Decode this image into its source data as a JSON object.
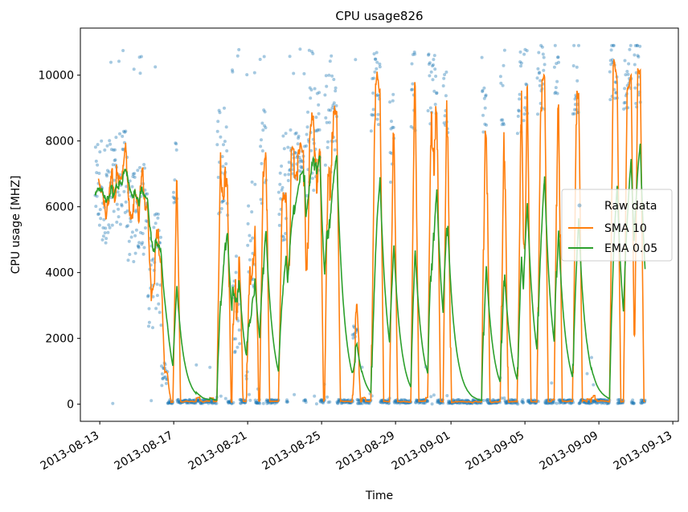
{
  "chart_data": {
    "type": "line",
    "title": "CPU usage826",
    "xlabel": "Time",
    "ylabel": "CPU usage [MHZ]",
    "x_ticks": [
      "2013-08-13",
      "2013-08-17",
      "2013-08-21",
      "2013-08-25",
      "2013-08-29",
      "2013-09-01",
      "2013-09-05",
      "2013-09-09",
      "2013-09-13"
    ],
    "y_ticks": [
      0,
      2000,
      4000,
      6000,
      8000,
      10000
    ],
    "xlim": [
      "2013-08-11T22:48",
      "2013-09-13T07:12"
    ],
    "ylim": [
      -520,
      11430
    ],
    "data_range": [
      "2013-08-12T18:00",
      "2013-09-11T12:00"
    ],
    "segments": [
      {
        "start": "2013-08-12T18:00",
        "end": "2013-08-13T12:00",
        "level": 6500,
        "noise": 1600
      },
      {
        "start": "2013-08-13T12:00",
        "end": "2013-08-14T12:00",
        "level": 6800,
        "noise": 1500
      },
      {
        "start": "2013-08-14T12:00",
        "end": "2013-08-15T14:00",
        "level": 5800,
        "noise": 1500
      },
      {
        "start": "2013-08-15T14:00",
        "end": "2013-08-16T08:00",
        "level": 4000,
        "noise": 1800
      },
      {
        "start": "2013-08-16T08:00",
        "end": "2013-08-16T16:00",
        "level": 900,
        "noise": 400
      },
      {
        "start": "2013-08-16T23:00",
        "end": "2013-08-17T05:00",
        "level": 7000,
        "noise": 1000
      },
      {
        "start": "2013-08-19T08:00",
        "end": "2013-08-19T22:00",
        "level": 7200,
        "noise": 1800
      },
      {
        "start": "2013-08-20T04:00",
        "end": "2013-08-20T14:00",
        "level": 3000,
        "noise": 1500
      },
      {
        "start": "2013-08-20T22:00",
        "end": "2013-08-21T00:00",
        "level": 900,
        "noise": 300
      },
      {
        "start": "2013-08-21T00:00",
        "end": "2013-08-21T10:00",
        "level": 5000,
        "noise": 1800
      },
      {
        "start": "2013-08-21T16:00",
        "end": "2013-08-22T00:00",
        "level": 7500,
        "noise": 1500
      },
      {
        "start": "2013-08-22T16:00",
        "end": "2013-08-23T02:00",
        "level": 6500,
        "noise": 1800
      },
      {
        "start": "2013-08-23T04:00",
        "end": "2013-08-24T02:00",
        "level": 7600,
        "noise": 900
      },
      {
        "start": "2013-08-24T04:00",
        "end": "2013-08-24T22:00",
        "level": 8000,
        "noise": 1800
      },
      {
        "start": "2013-08-25T04:00",
        "end": "2013-08-25T20:00",
        "level": 8500,
        "noise": 1500
      },
      {
        "start": "2013-08-26T16:00",
        "end": "2013-08-26T22:00",
        "level": 2200,
        "noise": 300
      },
      {
        "start": "2013-08-27T16:00",
        "end": "2013-08-28T04:00",
        "level": 9500,
        "noise": 1200
      },
      {
        "start": "2013-08-28T16:00",
        "end": "2013-08-28T22:00",
        "level": 8000,
        "noise": 1500
      },
      {
        "start": "2013-08-29T20:00",
        "end": "2013-08-30T02:00",
        "level": 9500,
        "noise": 1200
      },
      {
        "start": "2013-08-30T18:00",
        "end": "2013-08-31T06:00",
        "level": 9800,
        "noise": 1300
      },
      {
        "start": "2013-08-31T14:00",
        "end": "2013-08-31T20:00",
        "level": 9000,
        "noise": 1300
      },
      {
        "start": "2013-09-02T16:00",
        "end": "2013-09-02T22:00",
        "level": 9200,
        "noise": 1300
      },
      {
        "start": "2013-09-03T16:00",
        "end": "2013-09-03T22:00",
        "level": 9600,
        "noise": 1200
      },
      {
        "start": "2013-09-04T14:00",
        "end": "2013-09-04T20:00",
        "level": 9500,
        "noise": 1300
      },
      {
        "start": "2013-09-04T22:00",
        "end": "2013-09-05T04:00",
        "level": 9600,
        "noise": 1200
      },
      {
        "start": "2013-09-05T16:00",
        "end": "2013-09-06T02:00",
        "level": 9800,
        "noise": 1300
      },
      {
        "start": "2013-09-06T14:00",
        "end": "2013-09-06T20:00",
        "level": 10200,
        "noise": 1000
      },
      {
        "start": "2013-09-07T14:00",
        "end": "2013-09-07T22:00",
        "level": 10000,
        "noise": 1200
      },
      {
        "start": "2013-09-09T14:00",
        "end": "2013-09-10T00:00",
        "level": 10200,
        "noise": 1000
      },
      {
        "start": "2013-09-10T08:00",
        "end": "2013-09-10T18:00",
        "level": 10000,
        "noise": 1200
      },
      {
        "start": "2013-09-10T22:00",
        "end": "2013-09-11T06:00",
        "level": 10000,
        "noise": 1200
      }
    ],
    "baseline": 80,
    "series": [
      {
        "name": "Raw data",
        "style": "points",
        "color": "#1f77b4",
        "opacity": 0.4
      },
      {
        "name": "SMA 10",
        "style": "line",
        "color": "#ff7f0e",
        "window": 10
      },
      {
        "name": "EMA 0.05",
        "style": "line",
        "color": "#2ca02c",
        "alpha": 0.05
      }
    ],
    "legend_position": "center-right",
    "grid": false
  }
}
